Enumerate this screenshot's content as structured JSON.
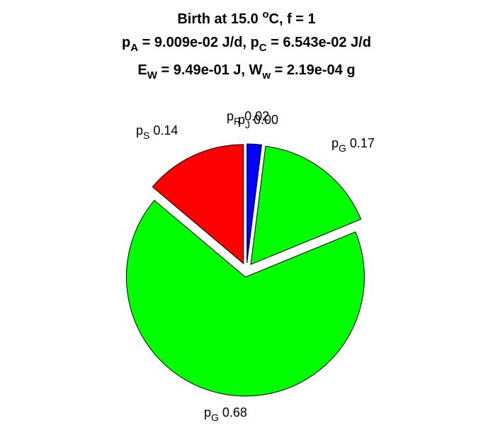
{
  "chart_data": {
    "type": "pie",
    "title": {
      "line1": {
        "text": "Birth at 15.0 ",
        "sup": "o",
        "tail": "C, f = 1"
      },
      "line2": [
        {
          "t": "p"
        },
        {
          "sub": "A"
        },
        {
          "t": " = 9.009e-02 J/d, p"
        },
        {
          "sub": "C"
        },
        {
          "t": " = 6.543e-02 J/d"
        }
      ],
      "line3": [
        {
          "t": "E"
        },
        {
          "sub": "W"
        },
        {
          "t": " = 9.49e-01 J, W"
        },
        {
          "sub": "w"
        },
        {
          "t": " = 2.19e-04 g"
        }
      ]
    },
    "slices": [
      {
        "id": "pR",
        "main": "p",
        "sub": "R",
        "value_label": "0.02",
        "value": 0.02,
        "color": "#0000ff"
      },
      {
        "id": "pG-growth",
        "main": "p",
        "sub": "G",
        "value_label": "0.17",
        "value": 0.17,
        "color": "#00ff00"
      },
      {
        "id": "pG-main",
        "main": "p",
        "sub": "G",
        "value_label": "0.68",
        "value": 0.68,
        "color": "#00ff00"
      },
      {
        "id": "pS",
        "main": "p",
        "sub": "S",
        "value_label": "0.14",
        "value": 0.14,
        "color": "#ff0000"
      },
      {
        "id": "pJ",
        "main": "p",
        "sub": "J",
        "value_label": "0.00",
        "value": 0.0,
        "color": "#ffff00"
      }
    ]
  }
}
